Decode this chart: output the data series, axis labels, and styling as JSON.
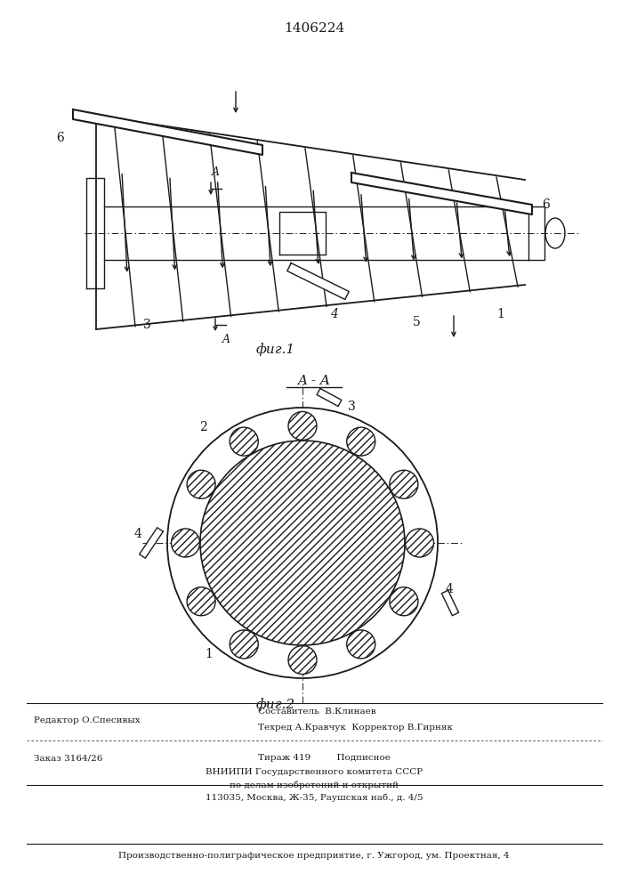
{
  "patent_number": "1406224",
  "fig1_label": "фиг.1",
  "fig2_label": "фиг.2",
  "section_label": "A - A",
  "line_color": "#1a1a1a",
  "footer_editor": "Редактор О.Спесивых",
  "footer_author": "Составитель  В.Клинаев",
  "footer_tech": "Техред А.Кравчук  Корректор В.Гирняк",
  "footer_order": "Заказ 3164/26",
  "footer_tirazh": "Тираж 419",
  "footer_podp": "Подписное",
  "footer_vniip1": "ВНИИПИ Государственного комитета СССР",
  "footer_vniip2": "по делам изобретений и открытий",
  "footer_addr": "113035, Москва, Ж-35, Раушская наб., д. 4/5",
  "footer_prod": "Производственно-полиграфическое предприятие, г. Ужгород, ум. Проектная, 4"
}
